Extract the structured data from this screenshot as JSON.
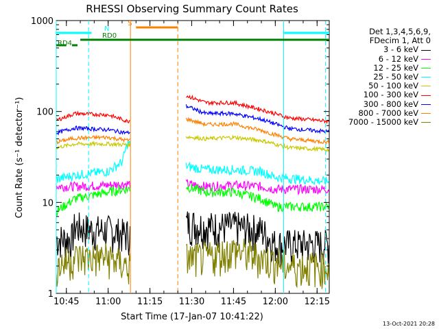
{
  "chart_data": {
    "type": "line",
    "title": "RHESSI Observing Summary Count Rates",
    "xlabel": "Start Time (17-Jan-07 10:41:22)",
    "ylabel": "Count Rate (s⁻¹ detector⁻¹)",
    "yscale": "log",
    "ylim": [
      1,
      1000
    ],
    "xlim_minutes": [
      "10:41:22",
      "12:19:22"
    ],
    "x_ticks": [
      "10:45",
      "11:00",
      "11:15",
      "11:30",
      "11:45",
      "12:00",
      "12:15"
    ],
    "y_ticks": [
      "1",
      "10",
      "100",
      "1000"
    ],
    "legend_header": [
      "Det 1,3,4,5,6,9,",
      "FDecim 1, Att 0"
    ],
    "grid": false,
    "legend_placement": "right",
    "data_gap": [
      "11:08",
      "11:28"
    ],
    "series": [
      {
        "name": "3 - 6 keV",
        "color": "#000000",
        "x": [
          "10:41:22",
          "10:47",
          "10:48",
          "10:55",
          "11:00",
          "11:06",
          "11:28",
          "11:35",
          "11:45",
          "11:55",
          "12:00",
          "12:10",
          "12:19"
        ],
        "values": [
          4,
          4,
          5.5,
          5,
          5,
          4.5,
          6,
          5.5,
          5.5,
          5,
          3.5,
          3.5,
          3.5
        ]
      },
      {
        "name": "6 - 12 keV",
        "color": "#ff00ff",
        "x": [
          "10:41:22",
          "10:48",
          "11:00",
          "11:06",
          "11:28",
          "11:35",
          "11:45",
          "11:55",
          "12:00",
          "12:19"
        ],
        "values": [
          15,
          15,
          15.5,
          16,
          16,
          15,
          15.5,
          15,
          14,
          14
        ]
      },
      {
        "name": "12 - 25 keV",
        "color": "#00ff00",
        "x": [
          "10:41:22",
          "10:48",
          "11:00",
          "11:06",
          "11:28",
          "11:35",
          "11:45",
          "11:55",
          "12:00",
          "12:19"
        ],
        "values": [
          8,
          11,
          13,
          14,
          15,
          13,
          13,
          11,
          9,
          9
        ]
      },
      {
        "name": "25 - 50 keV",
        "color": "#00ffff",
        "x": [
          "10:41:22",
          "10:48",
          "11:00",
          "11:05",
          "11:07",
          "11:28",
          "11:35",
          "11:45",
          "11:55",
          "12:00",
          "12:19"
        ],
        "values": [
          18,
          20,
          22,
          28,
          45,
          25,
          23,
          23,
          22,
          19,
          17
        ]
      },
      {
        "name": "50 - 100 keV",
        "color": "#c8c800",
        "x": [
          "10:41:22",
          "10:48",
          "11:00",
          "11:07",
          "11:28",
          "11:35",
          "11:45",
          "11:55",
          "12:05",
          "12:19"
        ],
        "values": [
          40,
          44,
          44,
          43,
          53,
          50,
          52,
          48,
          40,
          38
        ]
      },
      {
        "name": "100 - 300 keV",
        "color": "#ff0000",
        "x": [
          "10:41:22",
          "10:48",
          "11:00",
          "11:07",
          "11:28",
          "11:35",
          "11:45",
          "11:55",
          "12:05",
          "12:19"
        ],
        "values": [
          80,
          95,
          92,
          78,
          150,
          125,
          125,
          105,
          85,
          78
        ]
      },
      {
        "name": "300 - 800 keV",
        "color": "#0000ff",
        "x": [
          "10:41:22",
          "10:48",
          "11:00",
          "11:07",
          "11:28",
          "11:35",
          "11:45",
          "11:55",
          "12:05",
          "12:19"
        ],
        "values": [
          58,
          66,
          63,
          58,
          115,
          95,
          95,
          82,
          65,
          60
        ]
      },
      {
        "name": "800 - 7000 keV",
        "color": "#ff8000",
        "x": [
          "10:41:22",
          "10:48",
          "11:00",
          "11:07",
          "11:28",
          "11:35",
          "11:45",
          "11:55",
          "12:05",
          "12:19"
        ],
        "values": [
          46,
          51,
          52,
          48,
          83,
          72,
          73,
          62,
          50,
          46
        ]
      },
      {
        "name": "7000 - 15000 keV",
        "color": "#808000",
        "x": [
          "10:41:22",
          "10:48",
          "11:00",
          "11:07",
          "11:28",
          "11:35",
          "11:45",
          "11:55",
          "12:05",
          "12:19"
        ],
        "values": [
          2,
          2.5,
          2.5,
          2,
          2.5,
          2.5,
          3,
          2.5,
          2,
          2
        ]
      }
    ],
    "overlay_bars": [
      {
        "label": "N",
        "color": "#00ffff",
        "x_ranges": [
          [
            "10:41:22",
            "10:54"
          ],
          [
            "12:03",
            "12:19:22"
          ]
        ]
      },
      {
        "label": "S",
        "color": "#ff8000",
        "x_ranges": [
          [
            "11:10",
            "11:25"
          ]
        ]
      },
      {
        "label": "RD0",
        "color": "#008000",
        "x_ranges": [
          [
            "10:50",
            "12:19:22"
          ]
        ]
      },
      {
        "label": "RD4",
        "color": "#008000",
        "x_ranges": [
          [
            "10:41:22",
            "10:45"
          ],
          [
            "10:47",
            "10:49"
          ]
        ]
      }
    ],
    "vertical_markers": [
      {
        "time": "10:41:22",
        "color": "#00ffff",
        "style": "solid"
      },
      {
        "time": "10:53",
        "color": "#00ffff",
        "style": "dashed"
      },
      {
        "time": "11:08",
        "color": "#ff8000",
        "style": "solid"
      },
      {
        "time": "11:25",
        "color": "#ff8000",
        "style": "dashed"
      },
      {
        "time": "12:03",
        "color": "#00ffff",
        "style": "solid"
      },
      {
        "time": "12:18",
        "color": "#00ffff",
        "style": "dashed"
      }
    ]
  },
  "footer_text": "13-Oct-2021 20:28"
}
